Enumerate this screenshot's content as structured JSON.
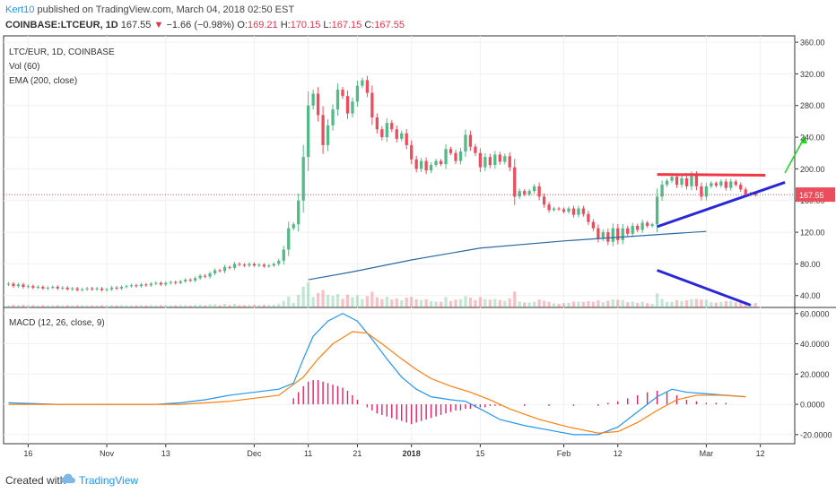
{
  "header": {
    "publisher": "Kert10",
    "published_text": " published on TradingView.com, March 04, 2018 02:50 EST",
    "symbol": "COINBASE:LTCEUR, 1D",
    "last": "167.55",
    "change_arrow": "▼",
    "change": "−1.66 (−0.98%)",
    "o_label": "O:",
    "o_value": "169.21",
    "h_label": "H:",
    "h_value": "170.15",
    "l_label": "L:",
    "l_value": "167.15",
    "c_label": "C:",
    "c_value": "167.55"
  },
  "legend": {
    "line1": "LTC/EUR, 1D, COINBASE",
    "line2": "Vol (60)",
    "line3": "EMA (200, close)",
    "macd": "MACD (12, 26, close, 9)"
  },
  "footer": {
    "created_with": "Created with",
    "brand": "TradingView"
  },
  "colors": {
    "up": "#53b987",
    "down": "#eb4d5c",
    "ema": "#2c6aa0",
    "macd_line": "#2196f3",
    "signal_line": "#ff7f0e",
    "histogram": "#e91e63",
    "trend_red": "#f23645",
    "trend_blue": "#2a26d9",
    "arrow_green": "#28d628"
  },
  "chart_data": {
    "type": "candlestick",
    "price_axis": {
      "ticks": [
        "360.00",
        "320.00",
        "280.00",
        "240.00",
        "200.00",
        "160.00",
        "120.00",
        "80.00",
        "40.00"
      ],
      "range": [
        25,
        368
      ],
      "last_price_label": "167.55"
    },
    "macd_axis": {
      "ticks": [
        "60.0000",
        "40.0000",
        "20.0000",
        "0.0000",
        "-20.0000"
      ],
      "range": [
        -26,
        64
      ]
    },
    "x_ticks": [
      "16",
      "Nov",
      "13",
      "Dec",
      "11",
      "21",
      "2018",
      "15",
      "Feb",
      "12",
      "Mar",
      "12"
    ],
    "x_tick_days": [
      -46,
      -30,
      -18,
      0,
      11,
      21,
      32,
      46,
      63,
      74,
      92,
      103
    ],
    "x_range_days": [
      -51,
      110
    ],
    "candles": [
      [
        -50,
        54,
        55
      ],
      [
        -49,
        55,
        52
      ],
      [
        -48,
        52,
        54
      ],
      [
        -47,
        54,
        51
      ],
      [
        -46,
        51,
        52
      ],
      [
        -45,
        52,
        50
      ],
      [
        -44,
        50,
        51
      ],
      [
        -43,
        51,
        49
      ],
      [
        -42,
        49,
        50
      ],
      [
        -41,
        50,
        51
      ],
      [
        -40,
        51,
        49
      ],
      [
        -39,
        49,
        50
      ],
      [
        -38,
        50,
        48
      ],
      [
        -37,
        48,
        49
      ],
      [
        -36,
        49,
        47
      ],
      [
        -35,
        47,
        48
      ],
      [
        -34,
        48,
        49
      ],
      [
        -33,
        49,
        48
      ],
      [
        -32,
        48,
        49
      ],
      [
        -31,
        49,
        47
      ],
      [
        -30,
        47,
        48
      ],
      [
        -29,
        48,
        50
      ],
      [
        -28,
        50,
        49
      ],
      [
        -27,
        49,
        51
      ],
      [
        -26,
        51,
        52
      ],
      [
        -25,
        52,
        53
      ],
      [
        -24,
        53,
        52
      ],
      [
        -23,
        52,
        54
      ],
      [
        -22,
        54,
        53
      ],
      [
        -21,
        53,
        55
      ],
      [
        -20,
        55,
        56
      ],
      [
        -19,
        56,
        54
      ],
      [
        -18,
        54,
        56
      ],
      [
        -17,
        56,
        57
      ],
      [
        -16,
        57,
        56
      ],
      [
        -15,
        56,
        58
      ],
      [
        -14,
        58,
        60
      ],
      [
        -13,
        60,
        59
      ],
      [
        -12,
        59,
        62
      ],
      [
        -11,
        62,
        65
      ],
      [
        -10,
        65,
        64
      ],
      [
        -9,
        64,
        68
      ],
      [
        -8,
        68,
        72
      ],
      [
        -7,
        72,
        71
      ],
      [
        -6,
        71,
        76
      ],
      [
        -5,
        76,
        75
      ],
      [
        -4,
        75,
        80
      ],
      [
        -3,
        80,
        79
      ],
      [
        -2,
        79,
        78
      ],
      [
        -1,
        78,
        80
      ],
      [
        0,
        80,
        78
      ],
      [
        1,
        78,
        79
      ],
      [
        2,
        79,
        77
      ],
      [
        3,
        77,
        78
      ],
      [
        4,
        78,
        80
      ],
      [
        5,
        80,
        84
      ],
      [
        6,
        84,
        98
      ],
      [
        7,
        98,
        125
      ],
      [
        8,
        125,
        130
      ],
      [
        9,
        130,
        160
      ],
      [
        10,
        160,
        215
      ],
      [
        11,
        215,
        280
      ],
      [
        12,
        280,
        295
      ],
      [
        13,
        295,
        268
      ],
      [
        14,
        268,
        230
      ],
      [
        15,
        230,
        255
      ],
      [
        16,
        255,
        275
      ],
      [
        17,
        275,
        300
      ],
      [
        18,
        300,
        292
      ],
      [
        19,
        292,
        270
      ],
      [
        20,
        270,
        285
      ],
      [
        21,
        285,
        305
      ],
      [
        22,
        305,
        312
      ],
      [
        23,
        312,
        296
      ],
      [
        24,
        296,
        265
      ],
      [
        25,
        265,
        250
      ],
      [
        26,
        250,
        240
      ],
      [
        27,
        240,
        258
      ],
      [
        28,
        258,
        250
      ],
      [
        29,
        250,
        238
      ],
      [
        30,
        238,
        245
      ],
      [
        31,
        245,
        230
      ],
      [
        32,
        230,
        212
      ],
      [
        33,
        212,
        200
      ],
      [
        34,
        200,
        210
      ],
      [
        35,
        210,
        198
      ],
      [
        36,
        198,
        205
      ],
      [
        37,
        205,
        210
      ],
      [
        38,
        210,
        206
      ],
      [
        39,
        206,
        225
      ],
      [
        40,
        225,
        220
      ],
      [
        41,
        220,
        210
      ],
      [
        42,
        210,
        222
      ],
      [
        43,
        222,
        243
      ],
      [
        44,
        243,
        228
      ],
      [
        45,
        228,
        220
      ],
      [
        46,
        220,
        202
      ],
      [
        47,
        202,
        215
      ],
      [
        48,
        215,
        205
      ],
      [
        49,
        205,
        218
      ],
      [
        50,
        218,
        209
      ],
      [
        51,
        209,
        216
      ],
      [
        52,
        216,
        202
      ],
      [
        53,
        202,
        165
      ],
      [
        54,
        165,
        172
      ],
      [
        55,
        172,
        168
      ],
      [
        56,
        168,
        172
      ],
      [
        57,
        172,
        178
      ],
      [
        58,
        178,
        165
      ],
      [
        59,
        165,
        155
      ],
      [
        60,
        155,
        148
      ],
      [
        61,
        148,
        150
      ],
      [
        62,
        150,
        149
      ],
      [
        63,
        149,
        146
      ],
      [
        64,
        146,
        150
      ],
      [
        65,
        150,
        142
      ],
      [
        66,
        142,
        150
      ],
      [
        67,
        150,
        143
      ],
      [
        68,
        143,
        133
      ],
      [
        69,
        133,
        125
      ],
      [
        70,
        125,
        112
      ],
      [
        71,
        112,
        120
      ],
      [
        72,
        120,
        108
      ],
      [
        73,
        108,
        125
      ],
      [
        74,
        125,
        110
      ],
      [
        75,
        110,
        125
      ],
      [
        76,
        125,
        118
      ],
      [
        77,
        118,
        128
      ],
      [
        78,
        128,
        123
      ],
      [
        79,
        123,
        132
      ],
      [
        80,
        132,
        128
      ],
      [
        81,
        128,
        130
      ],
      [
        82,
        130,
        165
      ],
      [
        83,
        165,
        180
      ],
      [
        84,
        180,
        185
      ],
      [
        85,
        185,
        190
      ],
      [
        86,
        190,
        180
      ],
      [
        87,
        180,
        188
      ],
      [
        88,
        188,
        178
      ],
      [
        89,
        178,
        192
      ],
      [
        90,
        192,
        178
      ],
      [
        91,
        178,
        165
      ],
      [
        92,
        165,
        178
      ],
      [
        93,
        178,
        182
      ],
      [
        94,
        182,
        179
      ],
      [
        95,
        179,
        184
      ],
      [
        96,
        184,
        176
      ],
      [
        97,
        176,
        184
      ],
      [
        98,
        184,
        180
      ],
      [
        99,
        180,
        174
      ],
      [
        100,
        174,
        168
      ],
      [
        101,
        168,
        169
      ],
      [
        102,
        169,
        167
      ]
    ],
    "ema200_points": [
      [
        11,
        60
      ],
      [
        20,
        70
      ],
      [
        32,
        85
      ],
      [
        46,
        100
      ],
      [
        63,
        109
      ],
      [
        82,
        117
      ],
      [
        92,
        121
      ]
    ],
    "macd_line": [
      [
        -50,
        1
      ],
      [
        -40,
        0
      ],
      [
        -30,
        0
      ],
      [
        -20,
        0
      ],
      [
        -15,
        1
      ],
      [
        -10,
        3
      ],
      [
        -5,
        6
      ],
      [
        0,
        8
      ],
      [
        5,
        10
      ],
      [
        8,
        14
      ],
      [
        10,
        30
      ],
      [
        12,
        45
      ],
      [
        15,
        55
      ],
      [
        18,
        60
      ],
      [
        21,
        55
      ],
      [
        24,
        43
      ],
      [
        27,
        30
      ],
      [
        30,
        18
      ],
      [
        33,
        10
      ],
      [
        36,
        5
      ],
      [
        40,
        3
      ],
      [
        43,
        2
      ],
      [
        46,
        -3
      ],
      [
        50,
        -10
      ],
      [
        55,
        -14
      ],
      [
        60,
        -17
      ],
      [
        65,
        -20
      ],
      [
        70,
        -20
      ],
      [
        74,
        -15
      ],
      [
        78,
        -5
      ],
      [
        82,
        5
      ],
      [
        85,
        10
      ],
      [
        88,
        8
      ],
      [
        92,
        7
      ],
      [
        96,
        6
      ],
      [
        100,
        5
      ]
    ],
    "signal_line": [
      [
        -50,
        0
      ],
      [
        -30,
        0
      ],
      [
        -15,
        0
      ],
      [
        -5,
        2
      ],
      [
        0,
        4
      ],
      [
        5,
        6
      ],
      [
        10,
        18
      ],
      [
        13,
        30
      ],
      [
        16,
        40
      ],
      [
        20,
        48
      ],
      [
        23,
        47
      ],
      [
        26,
        40
      ],
      [
        30,
        30
      ],
      [
        33,
        23
      ],
      [
        36,
        17
      ],
      [
        40,
        12
      ],
      [
        44,
        8
      ],
      [
        48,
        3
      ],
      [
        52,
        -3
      ],
      [
        58,
        -10
      ],
      [
        64,
        -15
      ],
      [
        70,
        -19
      ],
      [
        74,
        -18
      ],
      [
        78,
        -12
      ],
      [
        82,
        -4
      ],
      [
        86,
        3
      ],
      [
        90,
        6
      ],
      [
        95,
        6
      ],
      [
        100,
        5
      ]
    ],
    "histogram": [
      [
        8,
        4
      ],
      [
        9,
        8
      ],
      [
        10,
        12
      ],
      [
        11,
        15
      ],
      [
        12,
        16
      ],
      [
        13,
        16
      ],
      [
        14,
        15
      ],
      [
        15,
        14
      ],
      [
        16,
        13
      ],
      [
        17,
        12
      ],
      [
        18,
        11
      ],
      [
        19,
        9
      ],
      [
        20,
        6
      ],
      [
        21,
        3
      ],
      [
        22,
        0
      ],
      [
        23,
        -2
      ],
      [
        24,
        -4
      ],
      [
        25,
        -6
      ],
      [
        26,
        -7
      ],
      [
        27,
        -8
      ],
      [
        28,
        -9
      ],
      [
        29,
        -10
      ],
      [
        30,
        -11
      ],
      [
        31,
        -12
      ],
      [
        32,
        -13
      ],
      [
        33,
        -12
      ],
      [
        34,
        -11
      ],
      [
        35,
        -10
      ],
      [
        36,
        -9
      ],
      [
        37,
        -8
      ],
      [
        38,
        -7
      ],
      [
        39,
        -6
      ],
      [
        40,
        -5
      ],
      [
        41,
        -4
      ],
      [
        42,
        -4
      ],
      [
        43,
        -3
      ],
      [
        44,
        -3
      ],
      [
        45,
        -2
      ],
      [
        46,
        -2
      ],
      [
        47,
        -2
      ],
      [
        48,
        -1
      ],
      [
        49,
        -1
      ],
      [
        50,
        -1
      ],
      [
        55,
        -1
      ],
      [
        60,
        -1
      ],
      [
        65,
        -1
      ],
      [
        70,
        -1
      ],
      [
        72,
        1
      ],
      [
        74,
        2
      ],
      [
        76,
        4
      ],
      [
        78,
        6
      ],
      [
        80,
        8
      ],
      [
        82,
        9
      ],
      [
        84,
        8
      ],
      [
        86,
        6
      ],
      [
        88,
        3
      ],
      [
        90,
        2
      ],
      [
        92,
        1
      ],
      [
        94,
        1
      ],
      [
        96,
        1
      ],
      [
        98,
        0
      ],
      [
        100,
        0
      ]
    ]
  }
}
